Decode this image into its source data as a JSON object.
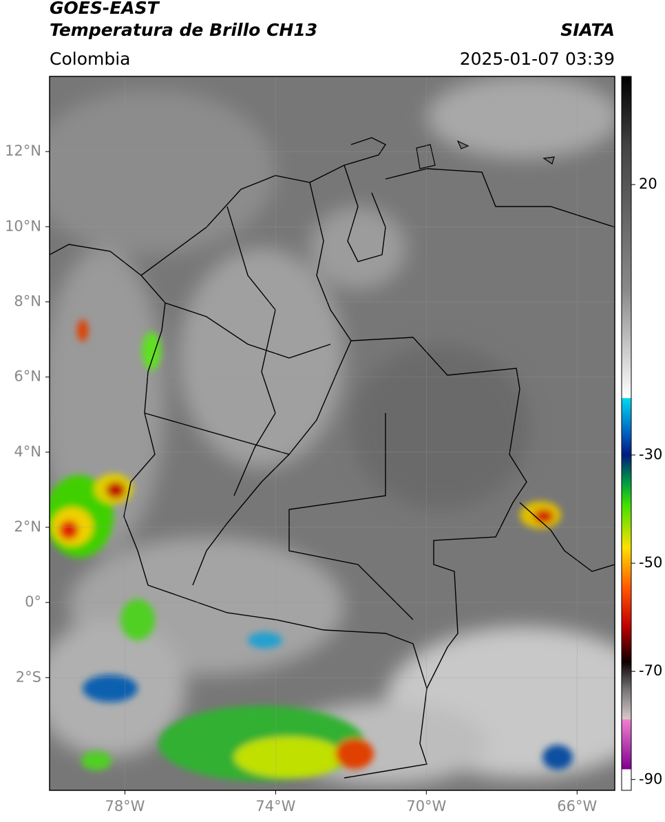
{
  "header": {
    "title": "GOES-EAST",
    "subtitle": "Temperatura de Brillo CH13",
    "source": "SIATA",
    "region": "Colombia",
    "timestamp": "2025-01-07 03:39"
  },
  "map": {
    "lonlim": [
      -80,
      -65
    ],
    "latlim": [
      -5,
      14
    ],
    "lon_ticks": [
      {
        "value": -78,
        "label": "78°W"
      },
      {
        "value": -74,
        "label": "74°W"
      },
      {
        "value": -70,
        "label": "70°W"
      },
      {
        "value": -66,
        "label": "66°W"
      }
    ],
    "lat_ticks": [
      {
        "value": 12,
        "label": "12°N"
      },
      {
        "value": 10,
        "label": "10°N"
      },
      {
        "value": 8,
        "label": "8°N"
      },
      {
        "value": 6,
        "label": "6°N"
      },
      {
        "value": 4,
        "label": "4°N"
      },
      {
        "value": 2,
        "label": "2°N"
      },
      {
        "value": 0,
        "label": "0°"
      },
      {
        "value": -2,
        "label": "2°S"
      }
    ]
  },
  "colorbar": {
    "range": [
      -92,
      40
    ],
    "ticks": [
      20,
      -30,
      -50,
      -70,
      -90
    ]
  }
}
